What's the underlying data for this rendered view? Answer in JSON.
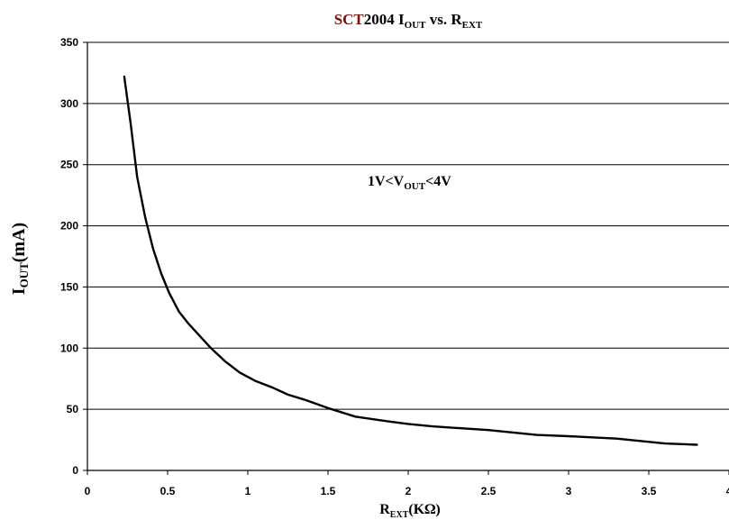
{
  "chart_data": {
    "type": "line",
    "title": {
      "brand": "SCT",
      "model": "2004",
      "i_main": " I",
      "i_sub": "OUT",
      "vs": " vs. R",
      "r_sub": "EXT"
    },
    "title_brand_color": "#7a1010",
    "xlabel": {
      "main": "R",
      "sub": "EXT",
      "unit": "(KΩ)"
    },
    "ylabel": {
      "main": "I",
      "sub": "OUT",
      "unit": "(mA)"
    },
    "annotation": {
      "pre": "1V<V",
      "sub": "OUT",
      "post": "<4V"
    },
    "xlim": [
      0,
      4
    ],
    "ylim": [
      0,
      350
    ],
    "x_ticks": [
      "0",
      "0.5",
      "1",
      "1.5",
      "2",
      "2.5",
      "3",
      "3.5",
      "4"
    ],
    "y_ticks": [
      "0",
      "50",
      "100",
      "150",
      "200",
      "250",
      "300",
      "350"
    ],
    "grid": {
      "horizontal": true,
      "vertical": false
    },
    "series": [
      {
        "x": [
          0.23,
          0.27,
          0.31,
          0.36,
          0.41,
          0.46,
          0.51,
          0.57,
          0.63,
          0.7,
          0.77,
          0.86,
          0.95,
          1.05,
          1.15,
          1.25,
          1.35,
          1.5,
          1.67,
          1.88,
          2.0,
          2.15,
          2.5,
          2.8,
          3.0,
          3.3,
          3.6,
          3.8
        ],
        "y": [
          322,
          283,
          240,
          207,
          181,
          161,
          145,
          130,
          120,
          110,
          100,
          89,
          80,
          73,
          68,
          62,
          58,
          51,
          44,
          40,
          38,
          36,
          33,
          29,
          28,
          26,
          22,
          21
        ],
        "color": "#000000"
      }
    ]
  }
}
